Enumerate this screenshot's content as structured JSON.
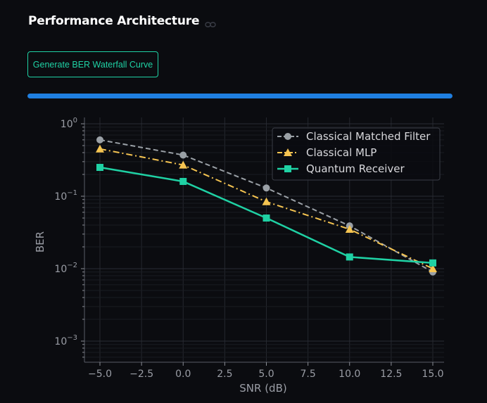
{
  "header": {
    "title": "Performance Architecture",
    "link_icon": "link-icon"
  },
  "controls": {
    "generate_label": "Generate BER Waterfall Curve",
    "progress": 1.0
  },
  "colors": {
    "background": "#0b0c10",
    "accent": "#1fd1a4",
    "progress": "#1f7fe0",
    "classical_matched_filter": "#9aa0a6",
    "classical_mlp": "#f5c451",
    "quantum_receiver": "#1fd1a4"
  },
  "chart_data": {
    "type": "line",
    "title": "",
    "xlabel": "SNR (dB)",
    "ylabel": "BER",
    "yscale": "log",
    "xlim": [
      -6.5,
      16.5
    ],
    "ylim": [
      0.0003,
      1.0
    ],
    "x_ticks": [
      -5.0,
      -2.5,
      0.0,
      2.5,
      5.0,
      7.5,
      10.0,
      12.5,
      15.0
    ],
    "x_tick_labels": [
      "−5.0",
      "−2.5",
      "0.0",
      "2.5",
      "5.0",
      "7.5",
      "10.0",
      "12.5",
      "15.0"
    ],
    "y_ticks": [
      1,
      0.1,
      0.01,
      0.001
    ],
    "y_tick_labels": [
      {
        "base": "10",
        "exp": "0"
      },
      {
        "base": "10",
        "exp": "−1"
      },
      {
        "base": "10",
        "exp": "−2"
      },
      {
        "base": "10",
        "exp": "−3"
      }
    ],
    "grid": true,
    "legend_position": "top-right",
    "x": [
      -5,
      0,
      5,
      10,
      15
    ],
    "series": [
      {
        "name": "Classical Matched Filter",
        "values": [
          0.6,
          0.37,
          0.13,
          0.039,
          0.009
        ],
        "color": "#9aa0a6",
        "marker": "circle",
        "linestyle": "dashed"
      },
      {
        "name": "Classical MLP",
        "values": [
          0.45,
          0.27,
          0.084,
          0.035,
          0.01
        ],
        "color": "#f5c451",
        "marker": "triangle",
        "linestyle": "dashdot"
      },
      {
        "name": "Quantum Receiver",
        "values": [
          0.25,
          0.16,
          0.05,
          0.0145,
          0.012
        ],
        "color": "#1fd1a4",
        "marker": "square",
        "linestyle": "solid"
      }
    ]
  }
}
